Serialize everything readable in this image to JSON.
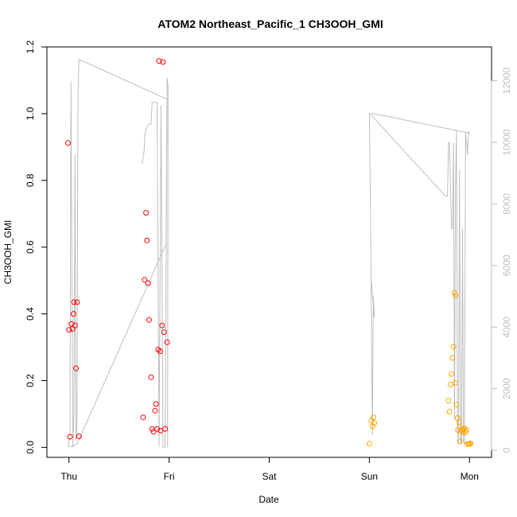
{
  "chart_data": {
    "type": "scatter",
    "title": "ATOM2 Northeast_Pacific_1 CH3OOH_GMI",
    "xlabel": "Date",
    "ylabel": "CH3OOH_GMI",
    "x_ticks": [
      {
        "day": 0,
        "label": "Thu"
      },
      {
        "day": 1,
        "label": "Fri"
      },
      {
        "day": 2,
        "label": "Sat"
      },
      {
        "day": 3,
        "label": "Sun"
      },
      {
        "day": 4,
        "label": "Mon"
      }
    ],
    "xlim": [
      -0.22,
      4.22
    ],
    "ylim": [
      -0.03,
      1.2
    ],
    "y_ticks": [
      {
        "value": 0.0,
        "label": "0.0"
      },
      {
        "value": 0.2,
        "label": "0.2"
      },
      {
        "value": 0.4,
        "label": "0.4"
      },
      {
        "value": 0.6,
        "label": "0.6"
      },
      {
        "value": 0.8,
        "label": "0.8"
      },
      {
        "value": 1.0,
        "label": "1.0"
      },
      {
        "value": 1.2,
        "label": "1.2"
      }
    ],
    "y2lim": [
      -230,
      13100
    ],
    "y2_ticks": [
      {
        "value": 0,
        "label": "0"
      },
      {
        "value": 2000,
        "label": "2000"
      },
      {
        "value": 4000,
        "label": "4000"
      },
      {
        "value": 6000,
        "label": "6000"
      },
      {
        "value": 8000,
        "label": "8000"
      },
      {
        "value": 10000,
        "label": "10000"
      },
      {
        "value": 12000,
        "label": "12000"
      }
    ],
    "colors": {
      "series_red": "#ff0000",
      "series_orange": "#ffa500",
      "altitude_line": "#bebebe"
    },
    "series": [
      {
        "color": "#ff0000",
        "points": [
          [
            -0.01,
            0.912
          ],
          [
            0.0,
            0.352
          ],
          [
            0.01,
            0.032
          ],
          [
            0.025,
            0.37
          ],
          [
            0.035,
            0.355
          ],
          [
            0.045,
            0.4
          ],
          [
            0.05,
            0.435
          ],
          [
            0.06,
            0.365
          ],
          [
            0.07,
            0.237
          ],
          [
            0.08,
            0.435
          ],
          [
            0.1,
            0.033
          ],
          [
            0.74,
            0.09
          ],
          [
            0.755,
            0.502
          ],
          [
            0.77,
            0.703
          ],
          [
            0.78,
            0.62
          ],
          [
            0.79,
            0.492
          ],
          [
            0.8,
            0.382
          ],
          [
            0.82,
            0.21
          ],
          [
            0.83,
            0.055
          ],
          [
            0.845,
            0.047
          ],
          [
            0.86,
            0.11
          ],
          [
            0.87,
            0.13
          ],
          [
            0.88,
            0.055
          ],
          [
            0.89,
            0.293
          ],
          [
            0.9,
            1.158
          ],
          [
            0.91,
            0.288
          ],
          [
            0.915,
            0.05
          ],
          [
            0.93,
            0.365
          ],
          [
            0.94,
            1.155
          ],
          [
            0.95,
            0.345
          ],
          [
            0.96,
            0.055
          ],
          [
            0.98,
            0.315
          ]
        ]
      },
      {
        "color": "#ffa500",
        "points": [
          [
            3.0,
            0.011
          ],
          [
            3.02,
            0.08
          ],
          [
            3.03,
            0.063
          ],
          [
            3.04,
            0.09
          ],
          [
            3.05,
            0.073
          ],
          [
            3.79,
            0.14
          ],
          [
            3.8,
            0.107
          ],
          [
            3.81,
            0.188
          ],
          [
            3.82,
            0.22
          ],
          [
            3.83,
            0.268
          ],
          [
            3.84,
            0.302
          ],
          [
            3.85,
            0.463
          ],
          [
            3.855,
            0.193
          ],
          [
            3.86,
            0.455
          ],
          [
            3.87,
            0.128
          ],
          [
            3.88,
            0.088
          ],
          [
            3.885,
            0.052
          ],
          [
            3.9,
            0.075
          ],
          [
            3.905,
            0.018
          ],
          [
            3.92,
            0.05
          ],
          [
            3.93,
            0.055
          ],
          [
            3.935,
            0.045
          ],
          [
            3.94,
            0.053
          ],
          [
            3.95,
            0.057
          ],
          [
            3.96,
            0.045
          ],
          [
            3.97,
            0.052
          ],
          [
            3.98,
            0.01
          ],
          [
            3.99,
            0.01
          ],
          [
            4.0,
            0.01
          ],
          [
            4.01,
            0.012
          ]
        ]
      }
    ],
    "altitude_segments": [
      [
        [
          -0.01,
          100
        ],
        [
          0.01,
          500
        ],
        [
          0.02,
          12000
        ],
        [
          0.04,
          100
        ],
        [
          0.05,
          1200
        ],
        [
          0.06,
          9600
        ],
        [
          0.07,
          300
        ],
        [
          0.08,
          800
        ],
        [
          0.09,
          11500
        ],
        [
          0.1,
          12700
        ],
        [
          0.98,
          11400
        ],
        [
          0.97,
          6700
        ],
        [
          0.08,
          200
        ],
        [
          0.0,
          100
        ]
      ],
      [
        [
          0.73,
          9300
        ],
        [
          0.75,
          9700
        ],
        [
          0.76,
          10300
        ],
        [
          0.78,
          10500
        ],
        [
          0.8,
          10600
        ],
        [
          0.82,
          10600
        ],
        [
          0.83,
          11300
        ],
        [
          0.84,
          11300
        ],
        [
          0.88,
          11300
        ],
        [
          0.9,
          100
        ],
        [
          0.92,
          11200
        ],
        [
          0.94,
          100
        ],
        [
          0.96,
          100
        ],
        [
          0.98,
          12100
        ],
        [
          0.99,
          11800
        ],
        [
          0.985,
          100
        ]
      ],
      [
        [
          3.0,
          10950
        ],
        [
          3.01,
          8000
        ],
        [
          3.03,
          500
        ],
        [
          3.04,
          5000
        ],
        [
          3.05,
          4300
        ],
        [
          3.02,
          5500
        ]
      ],
      [
        [
          3.0,
          10950
        ],
        [
          3.76,
          8250
        ],
        [
          3.78,
          8250
        ],
        [
          3.79,
          10000
        ],
        [
          3.8,
          10000
        ],
        [
          3.82,
          7200
        ],
        [
          3.83,
          7200
        ],
        [
          3.84,
          10000
        ],
        [
          3.85,
          1000
        ],
        [
          3.86,
          8500
        ],
        [
          3.87,
          10400
        ],
        [
          3.88,
          800
        ],
        [
          3.89,
          200
        ],
        [
          3.9,
          9100
        ],
        [
          3.91,
          300
        ],
        [
          3.92,
          200
        ],
        [
          3.93,
          7200
        ],
        [
          3.94,
          300
        ],
        [
          3.95,
          200
        ],
        [
          3.96,
          10300
        ],
        [
          3.97,
          10000
        ],
        [
          3.98,
          9600
        ],
        [
          3.99,
          10350
        ],
        [
          4.0,
          10300
        ],
        [
          3.02,
          10950
        ]
      ]
    ]
  }
}
